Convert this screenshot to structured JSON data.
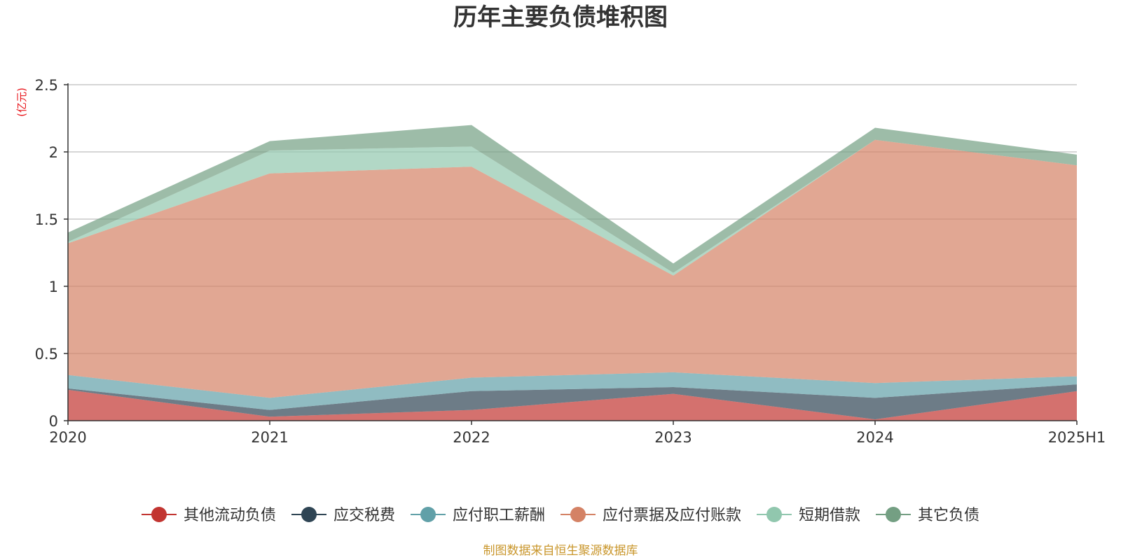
{
  "chart_data": {
    "type": "area",
    "stacked": true,
    "title": "历年主要负债堆积图",
    "unit_label": "(亿元)",
    "source_note": "制图数据来自恒生聚源数据库",
    "categories": [
      "2020",
      "2021",
      "2022",
      "2023",
      "2024",
      "2025H1"
    ],
    "ylim": [
      0,
      2.5
    ],
    "yticks": [
      "0",
      "0.5",
      "1",
      "1.5",
      "2",
      "2.5"
    ],
    "grid": true,
    "legend_position": "bottom",
    "series": [
      {
        "name": "其他流动负债",
        "color": "#c23531",
        "values": [
          0.23,
          0.03,
          0.08,
          0.2,
          0.01,
          0.22
        ]
      },
      {
        "name": "应交税费",
        "color": "#2f4554",
        "values": [
          0.01,
          0.05,
          0.14,
          0.05,
          0.16,
          0.05
        ]
      },
      {
        "name": "应付职工薪酬",
        "color": "#61a0a8",
        "values": [
          0.1,
          0.09,
          0.1,
          0.11,
          0.11,
          0.06
        ]
      },
      {
        "name": "应付票据及应付账款",
        "color": "#d48265",
        "values": [
          0.98,
          1.67,
          1.57,
          0.72,
          1.81,
          1.57
        ]
      },
      {
        "name": "短期借款",
        "color": "#91c7ae",
        "values": [
          0.01,
          0.17,
          0.15,
          0.02,
          0.0,
          0.0
        ]
      },
      {
        "name": "其它负债",
        "color": "#749f83",
        "values": [
          0.07,
          0.07,
          0.16,
          0.07,
          0.09,
          0.08
        ]
      }
    ]
  }
}
